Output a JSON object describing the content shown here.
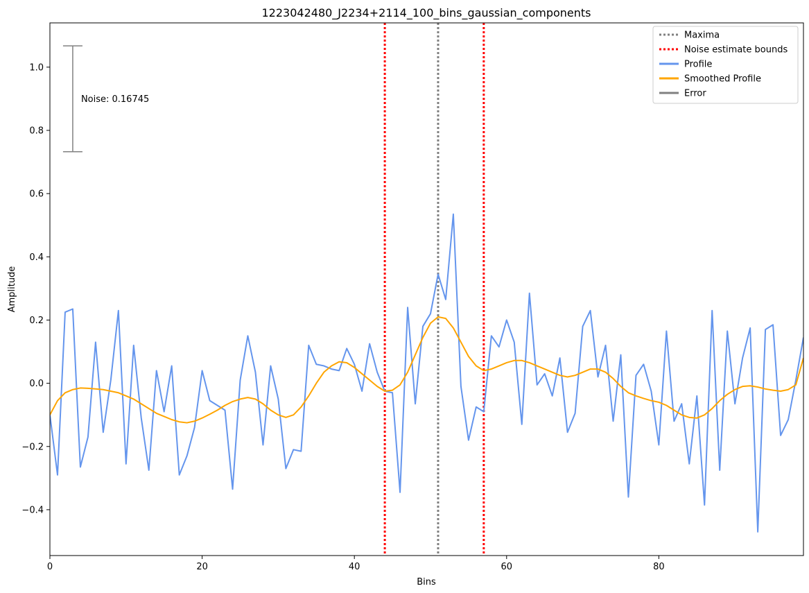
{
  "chart_data": {
    "type": "line",
    "title": "1223042480_J2234+2114_100_bins_gaussian_components",
    "xlabel": "Bins",
    "ylabel": "Amplitude",
    "xlim": [
      0,
      99
    ],
    "ylim": [
      -0.545,
      1.14
    ],
    "xticks": [
      0,
      20,
      40,
      60,
      80
    ],
    "yticks": [
      -0.4,
      -0.2,
      0.0,
      0.2,
      0.4,
      0.6,
      0.8,
      1.0
    ],
    "xtick_labels": [
      "0",
      "20",
      "40",
      "60",
      "80"
    ],
    "ytick_labels": [
      "−0.4",
      "−0.2",
      "0.0",
      "0.2",
      "0.4",
      "0.6",
      "0.8",
      "1.0"
    ],
    "grid": false,
    "legend_position": "top-right",
    "legend": [
      {
        "label": "Maxima",
        "color": "#808080",
        "style": "dotted"
      },
      {
        "label": "Noise estimate bounds",
        "color": "#ff0000",
        "style": "dotted"
      },
      {
        "label": "Profile",
        "color": "#6495ed",
        "style": "solid"
      },
      {
        "label": "Smoothed Profile",
        "color": "#ffa500",
        "style": "solid"
      },
      {
        "label": "Error",
        "color": "#808080",
        "style": "solid"
      }
    ],
    "vlines": [
      {
        "x": 51,
        "color": "#808080",
        "style": "dotted"
      },
      {
        "x": 44,
        "color": "#ff0000",
        "style": "dotted"
      },
      {
        "x": 57,
        "color": "#ff0000",
        "style": "dotted"
      }
    ],
    "error_bar": {
      "x": 3,
      "y": 0.9,
      "yerr": 0.16745,
      "label": "Noise: 0.16745",
      "color": "#808080"
    },
    "series": [
      {
        "name": "Profile",
        "color": "#6495ed",
        "x": [
          0,
          1,
          2,
          3,
          4,
          5,
          6,
          7,
          8,
          9,
          10,
          11,
          12,
          13,
          14,
          15,
          16,
          17,
          18,
          19,
          20,
          21,
          22,
          23,
          24,
          25,
          26,
          27,
          28,
          29,
          30,
          31,
          32,
          33,
          34,
          35,
          36,
          37,
          38,
          39,
          40,
          41,
          42,
          43,
          44,
          45,
          46,
          47,
          48,
          49,
          50,
          51,
          52,
          53,
          54,
          55,
          56,
          57,
          58,
          59,
          60,
          61,
          62,
          63,
          64,
          65,
          66,
          67,
          68,
          69,
          70,
          71,
          72,
          73,
          74,
          75,
          76,
          77,
          78,
          79,
          80,
          81,
          82,
          83,
          84,
          85,
          86,
          87,
          88,
          89,
          90,
          91,
          92,
          93,
          94,
          95,
          96,
          97,
          98,
          99
        ],
        "y": [
          -0.1,
          -0.29,
          0.225,
          0.235,
          -0.265,
          -0.17,
          0.13,
          -0.155,
          0.01,
          0.23,
          -0.255,
          0.12,
          -0.11,
          -0.275,
          0.04,
          -0.09,
          0.055,
          -0.29,
          -0.23,
          -0.14,
          0.04,
          -0.055,
          -0.07,
          -0.085,
          -0.335,
          0.01,
          0.15,
          0.035,
          -0.195,
          0.055,
          -0.05,
          -0.27,
          -0.21,
          -0.215,
          0.12,
          0.06,
          0.055,
          0.045,
          0.04,
          0.11,
          0.06,
          -0.025,
          0.125,
          0.035,
          -0.025,
          -0.03,
          -0.345,
          0.24,
          -0.065,
          0.18,
          0.22,
          0.345,
          0.265,
          0.535,
          -0.01,
          -0.18,
          -0.075,
          -0.09,
          0.15,
          0.115,
          0.2,
          0.13,
          -0.13,
          0.285,
          -0.005,
          0.03,
          -0.04,
          0.08,
          -0.155,
          -0.095,
          0.18,
          0.23,
          0.02,
          0.12,
          -0.12,
          0.09,
          -0.36,
          0.025,
          0.06,
          -0.025,
          -0.195,
          0.165,
          -0.12,
          -0.065,
          -0.255,
          -0.04,
          -0.385,
          0.23,
          -0.275,
          0.165,
          -0.065,
          0.08,
          0.175,
          -0.47,
          0.17,
          0.185,
          -0.165,
          -0.115,
          0.01,
          0.145
        ]
      },
      {
        "name": "Smoothed Profile",
        "color": "#ffa500",
        "x": [
          0,
          1,
          2,
          3,
          4,
          5,
          6,
          7,
          8,
          9,
          10,
          11,
          12,
          13,
          14,
          15,
          16,
          17,
          18,
          19,
          20,
          21,
          22,
          23,
          24,
          25,
          26,
          27,
          28,
          29,
          30,
          31,
          32,
          33,
          34,
          35,
          36,
          37,
          38,
          39,
          40,
          41,
          42,
          43,
          44,
          45,
          46,
          47,
          48,
          49,
          50,
          51,
          52,
          53,
          54,
          55,
          56,
          57,
          58,
          59,
          60,
          61,
          62,
          63,
          64,
          65,
          66,
          67,
          68,
          69,
          70,
          71,
          72,
          73,
          74,
          75,
          76,
          77,
          78,
          79,
          80,
          81,
          82,
          83,
          84,
          85,
          86,
          87,
          88,
          89,
          90,
          91,
          92,
          93,
          94,
          95,
          96,
          97,
          98,
          99
        ],
        "y": [
          -0.1,
          -0.055,
          -0.03,
          -0.02,
          -0.015,
          -0.016,
          -0.018,
          -0.02,
          -0.025,
          -0.03,
          -0.04,
          -0.05,
          -0.065,
          -0.08,
          -0.095,
          -0.105,
          -0.115,
          -0.122,
          -0.125,
          -0.12,
          -0.11,
          -0.098,
          -0.085,
          -0.07,
          -0.058,
          -0.05,
          -0.045,
          -0.05,
          -0.065,
          -0.085,
          -0.1,
          -0.108,
          -0.1,
          -0.075,
          -0.04,
          0.0,
          0.035,
          0.055,
          0.068,
          0.065,
          0.05,
          0.03,
          0.01,
          -0.01,
          -0.025,
          -0.022,
          -0.005,
          0.035,
          0.09,
          0.145,
          0.19,
          0.21,
          0.205,
          0.175,
          0.13,
          0.085,
          0.055,
          0.04,
          0.045,
          0.055,
          0.065,
          0.072,
          0.072,
          0.065,
          0.055,
          0.045,
          0.035,
          0.025,
          0.02,
          0.025,
          0.035,
          0.045,
          0.045,
          0.035,
          0.015,
          -0.01,
          -0.03,
          -0.04,
          -0.048,
          -0.055,
          -0.06,
          -0.07,
          -0.085,
          -0.1,
          -0.108,
          -0.11,
          -0.1,
          -0.08,
          -0.055,
          -0.035,
          -0.02,
          -0.01,
          -0.008,
          -0.012,
          -0.018,
          -0.022,
          -0.025,
          -0.02,
          -0.005,
          0.08
        ]
      }
    ]
  }
}
